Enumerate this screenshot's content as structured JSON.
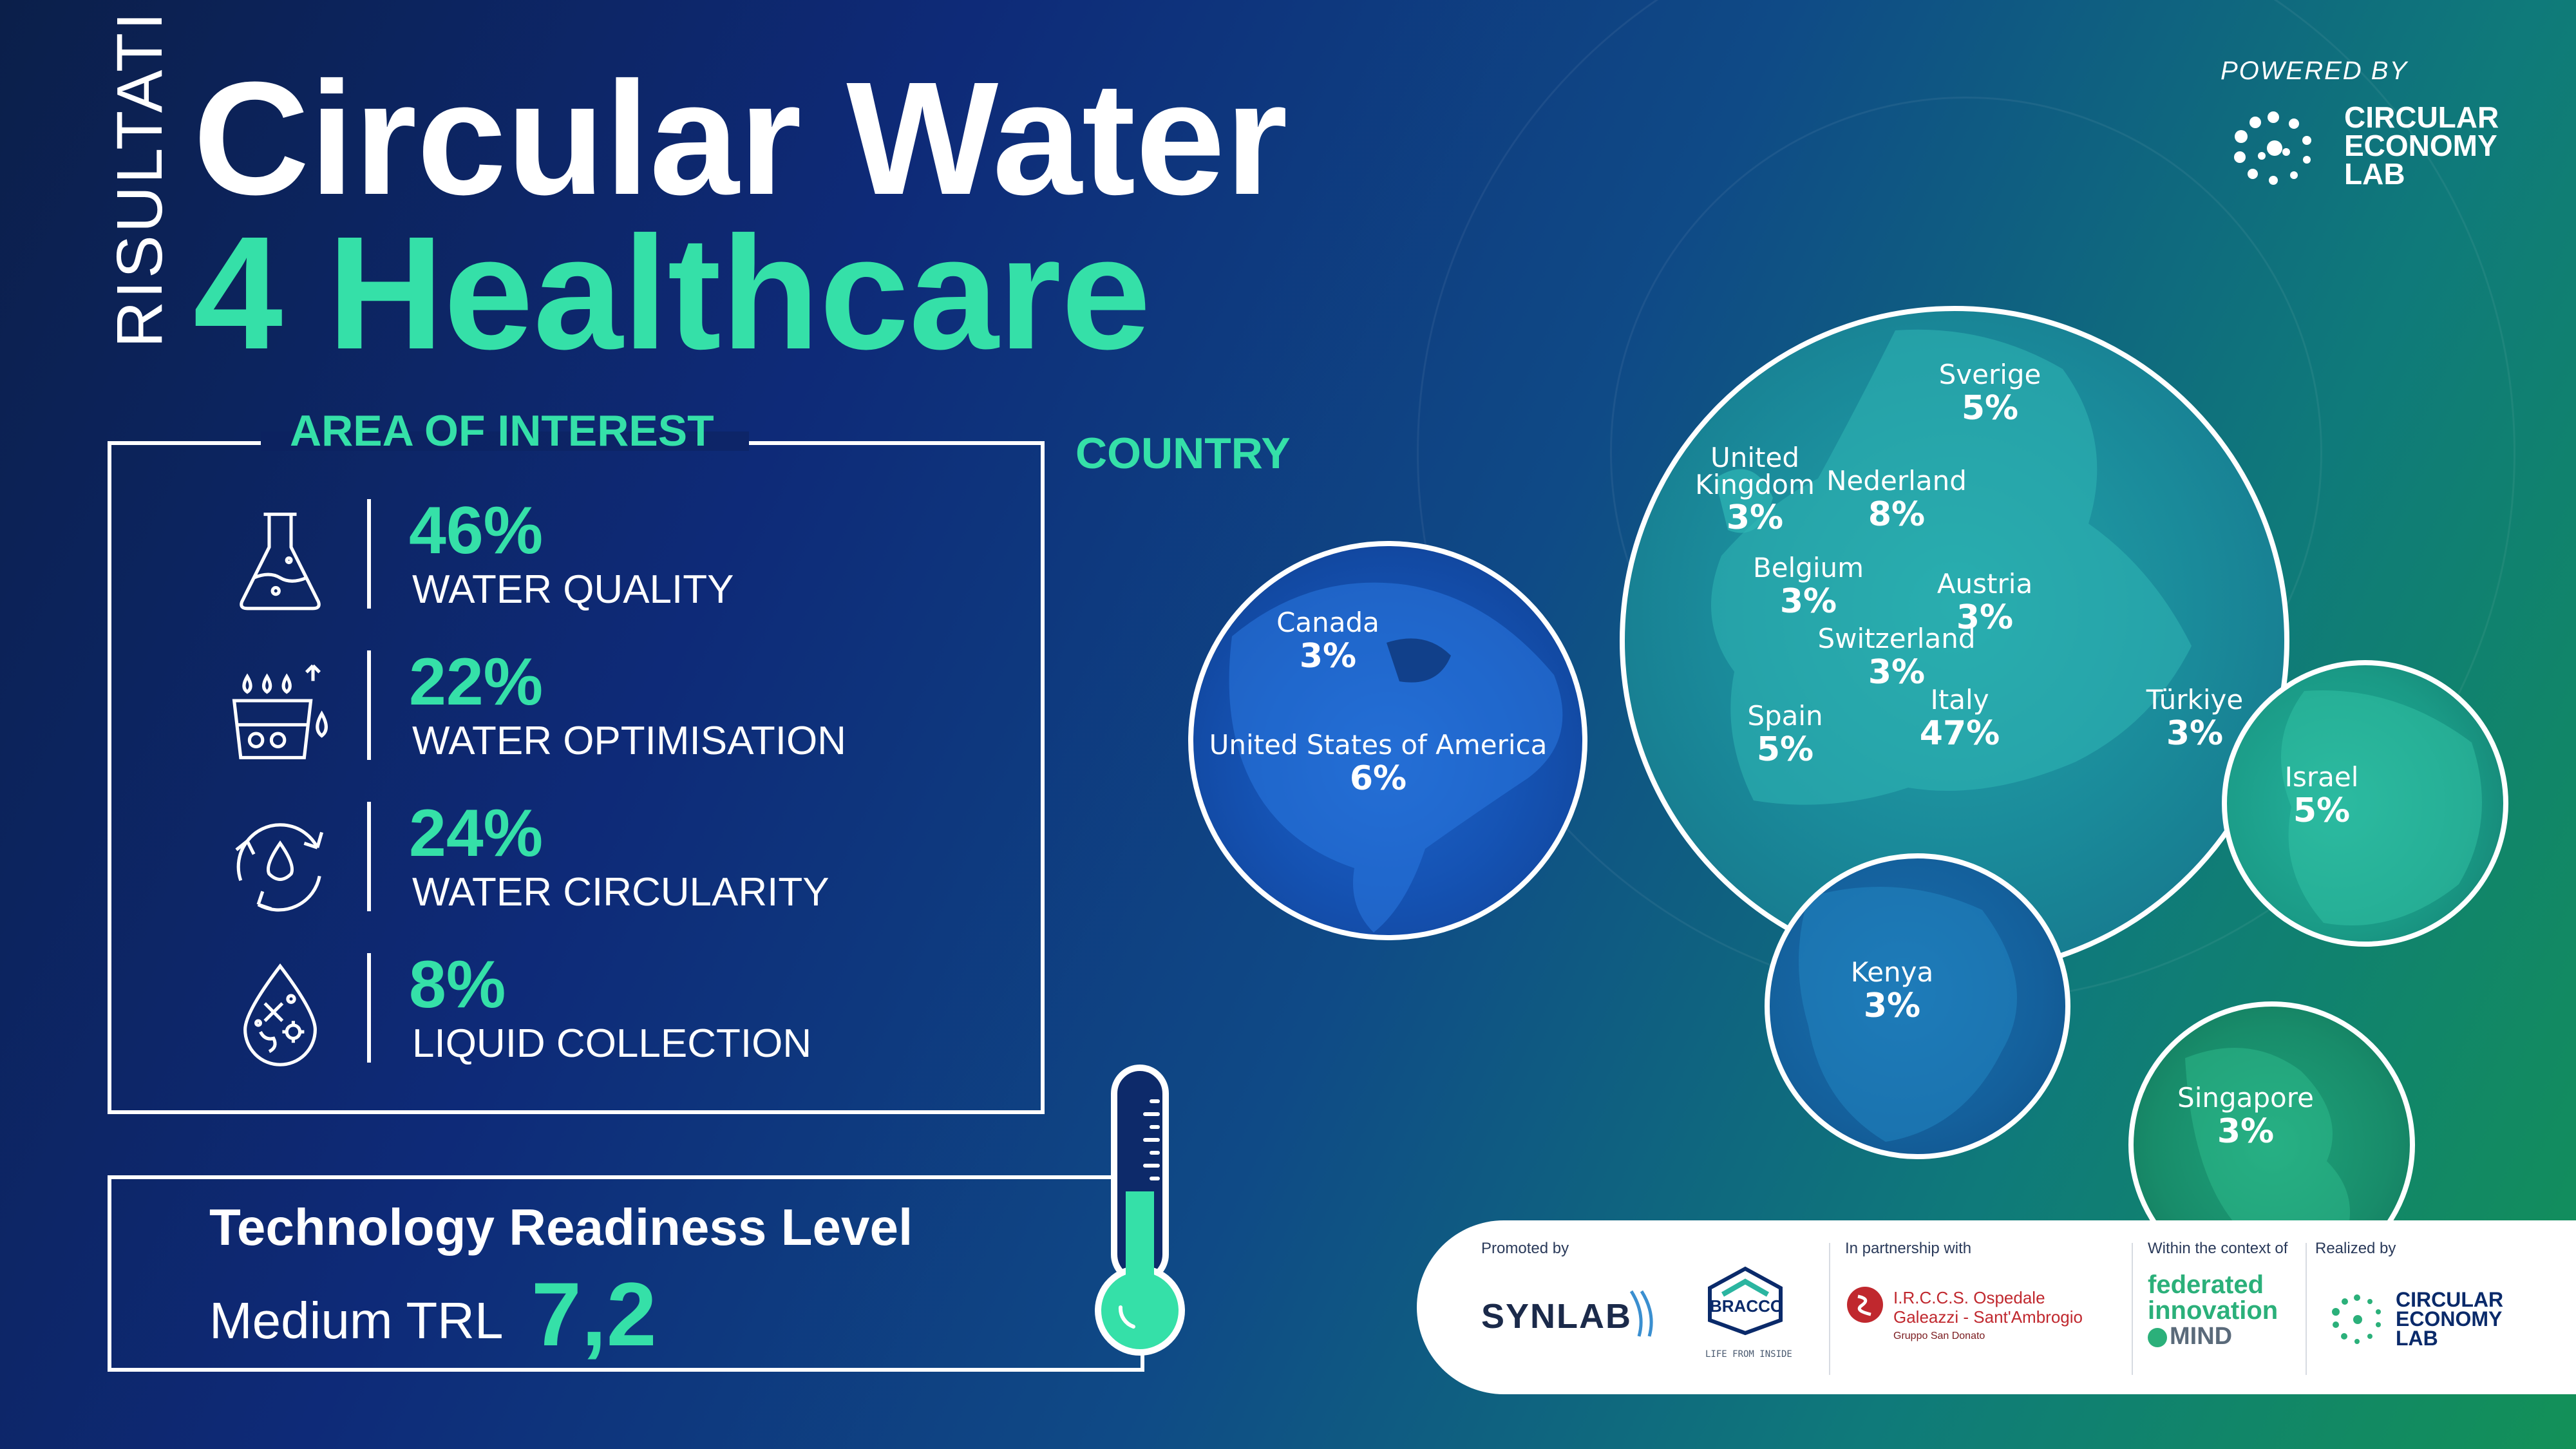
{
  "header": {
    "vertical_label": "RISULTATI",
    "title_line1": "Circular Water",
    "title_line2": "4 Healthcare",
    "powered_by": "POWERED BY",
    "logo": {
      "line1": "CIRCULAR",
      "line2": "ECONOMY",
      "line3": "LAB"
    }
  },
  "area_of_interest": {
    "title": "AREA OF INTEREST",
    "items": [
      {
        "percent": "46%",
        "label": "WATER QUALITY",
        "icon": "flask-icon"
      },
      {
        "percent": "22%",
        "label": "WATER OPTIMISATION",
        "icon": "water-drops-glass-icon"
      },
      {
        "percent": "24%",
        "label": "WATER CIRCULARITY",
        "icon": "recycle-drop-icon"
      },
      {
        "percent": "8%",
        "label": "LIQUID COLLECTION",
        "icon": "drop-bacteria-icon"
      }
    ]
  },
  "country": {
    "title": "COUNTRY",
    "entries": [
      {
        "name": "Canada",
        "value": "3%"
      },
      {
        "name": "United States of America",
        "value": "6%"
      },
      {
        "name": "Sverige",
        "value": "5%"
      },
      {
        "name": "United Kingdom",
        "value": "3%"
      },
      {
        "name": "Nederland",
        "value": "8%"
      },
      {
        "name": "Belgium",
        "value": "3%"
      },
      {
        "name": "Austria",
        "value": "3%"
      },
      {
        "name": "Switzerland",
        "value": "3%"
      },
      {
        "name": "Spain",
        "value": "5%"
      },
      {
        "name": "Italy",
        "value": "47%"
      },
      {
        "name": "Türkiye",
        "value": "3%"
      },
      {
        "name": "Israel",
        "value": "5%"
      },
      {
        "name": "Kenya",
        "value": "3%"
      },
      {
        "name": "Singapore",
        "value": "3%"
      }
    ]
  },
  "trl": {
    "title": "Technology Readiness Level",
    "level_label": "Medium TRL",
    "value": "7,2"
  },
  "footer": {
    "promoted_by": "Promoted by",
    "in_partnership_with": "In partnership with",
    "within_context": "Within the context of",
    "realized_by": "Realized by",
    "synlab": "SYNLAB",
    "bracco": "BRACCO",
    "bracco_tag": "LIFE FROM INSIDE",
    "hospital_line1": "I.R.C.C.S. Ospedale",
    "hospital_line2": "Galeazzi - Sant'Ambrogio",
    "hospital_line3": "Gruppo San Donato",
    "fi_line1": "federated",
    "fi_line2": "innovation",
    "fi_line3": "MIND",
    "cel": {
      "line1": "CIRCULAR",
      "line2": "ECONOMY",
      "line3": "LAB"
    }
  },
  "colors": {
    "accent": "#35e0a8",
    "bg_dark": "#0b1f4a",
    "bg_green": "#139158"
  }
}
